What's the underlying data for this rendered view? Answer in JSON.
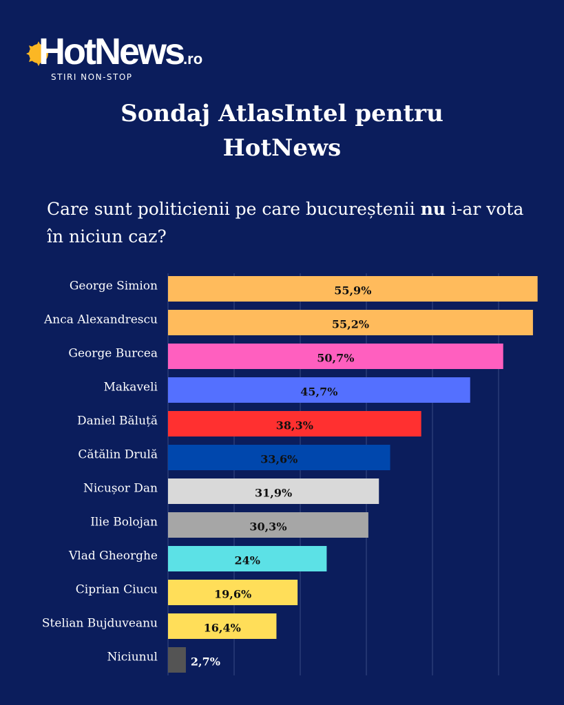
{
  "logo": {
    "name": "HotNews",
    "suffix": ".ro",
    "tagline": "STIRI NON-STOP"
  },
  "title": "Sondaj AtlasIntel pentru HotNews",
  "question": {
    "before": "Care sunt politicienii pe care bucureștenii ",
    "bold": "nu",
    "after": " i-ar vota în niciun caz?"
  },
  "chart_data": {
    "type": "bar",
    "orientation": "horizontal",
    "title": "Care sunt politicienii pe care bucureștenii nu i-ar vota în niciun caz?",
    "xlim": [
      0,
      56
    ],
    "grid": true,
    "categories": [
      "George Simion",
      "Anca Alexandrescu",
      "George Burcea",
      "Makaveli",
      "Daniel Băluță",
      "Cătălin Drulă",
      "Nicușor Dan",
      "Ilie Bolojan",
      "Vlad Gheorghe",
      "Ciprian Ciucu",
      "Stelian Bujduveanu",
      "Niciunul"
    ],
    "values": [
      55.9,
      55.2,
      50.7,
      45.7,
      38.3,
      33.6,
      31.9,
      30.3,
      24,
      19.6,
      16.4,
      2.7
    ],
    "labels": [
      "55,9%",
      "55,2%",
      "50,7%",
      "45,7%",
      "38,3%",
      "33,6%",
      "31,9%",
      "30,3%",
      "24%",
      "19,6%",
      "16,4%",
      "2,7%"
    ],
    "colors": [
      "#ffbb5c",
      "#ffbb5c",
      "#ff5fbf",
      "#5470ff",
      "#ff3030",
      "#0047ad",
      "#d9d9d9",
      "#a6a6a6",
      "#5ce1e6",
      "#ffde59",
      "#ffde59",
      "#545454"
    ]
  }
}
